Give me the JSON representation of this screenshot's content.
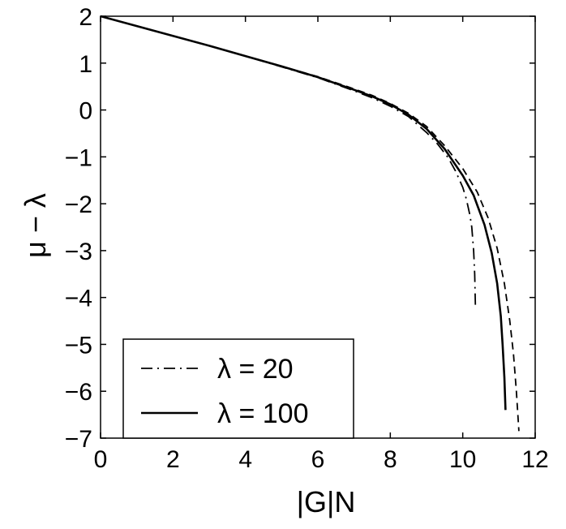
{
  "chart_data": {
    "type": "line",
    "xlabel": "|G|N",
    "ylabel": "μ − λ",
    "xlim": [
      0,
      12
    ],
    "ylim": [
      -7,
      2
    ],
    "x_ticks": [
      "0",
      "2",
      "4",
      "6",
      "8",
      "10",
      "12"
    ],
    "y_ticks": [
      "2",
      "1",
      "0",
      "−1",
      "−2",
      "−3",
      "−4",
      "−5",
      "−6",
      "−7"
    ],
    "grid": false,
    "legend_position": "bottom-left",
    "series": [
      {
        "name": "λ = 20",
        "style": "dash-dot",
        "color": "#000000",
        "x": [
          0,
          1,
          2,
          3,
          4,
          5,
          6,
          7,
          7.5,
          8,
          8.5,
          9,
          9.3,
          9.6,
          9.8,
          10.0,
          10.1,
          10.2,
          10.25,
          10.3,
          10.33,
          10.35
        ],
        "y": [
          2.0,
          1.79,
          1.58,
          1.37,
          1.15,
          0.92,
          0.69,
          0.41,
          0.26,
          0.08,
          -0.14,
          -0.48,
          -0.72,
          -1.02,
          -1.3,
          -1.65,
          -1.9,
          -2.25,
          -2.5,
          -3.0,
          -3.5,
          -4.2
        ]
      },
      {
        "name": "λ = 100",
        "style": "solid",
        "color": "#000000",
        "x": [
          0,
          1,
          2,
          3,
          4,
          5,
          6,
          7,
          7.5,
          8,
          8.5,
          9,
          9.5,
          10.0,
          10.3,
          10.6,
          10.8,
          10.95,
          11.05,
          11.1,
          11.15,
          11.18
        ],
        "y": [
          2.0,
          1.79,
          1.58,
          1.37,
          1.15,
          0.93,
          0.7,
          0.43,
          0.29,
          0.12,
          -0.1,
          -0.4,
          -0.83,
          -1.4,
          -1.82,
          -2.45,
          -3.05,
          -3.7,
          -4.4,
          -5.0,
          -5.7,
          -6.4
        ]
      },
      {
        "style": "dashed",
        "color": "#000000",
        "x": [
          0,
          1,
          2,
          3,
          4,
          5,
          6,
          7,
          7.5,
          8,
          8.5,
          9,
          9.5,
          10.0,
          10.4,
          10.7,
          10.95,
          11.15,
          11.3,
          11.4,
          11.48,
          11.55
        ],
        "y": [
          2.0,
          1.79,
          1.58,
          1.37,
          1.15,
          0.93,
          0.71,
          0.45,
          0.31,
          0.14,
          -0.07,
          -0.35,
          -0.76,
          -1.25,
          -1.75,
          -2.3,
          -2.95,
          -3.7,
          -4.5,
          -5.2,
          -6.0,
          -6.85
        ]
      }
    ]
  }
}
